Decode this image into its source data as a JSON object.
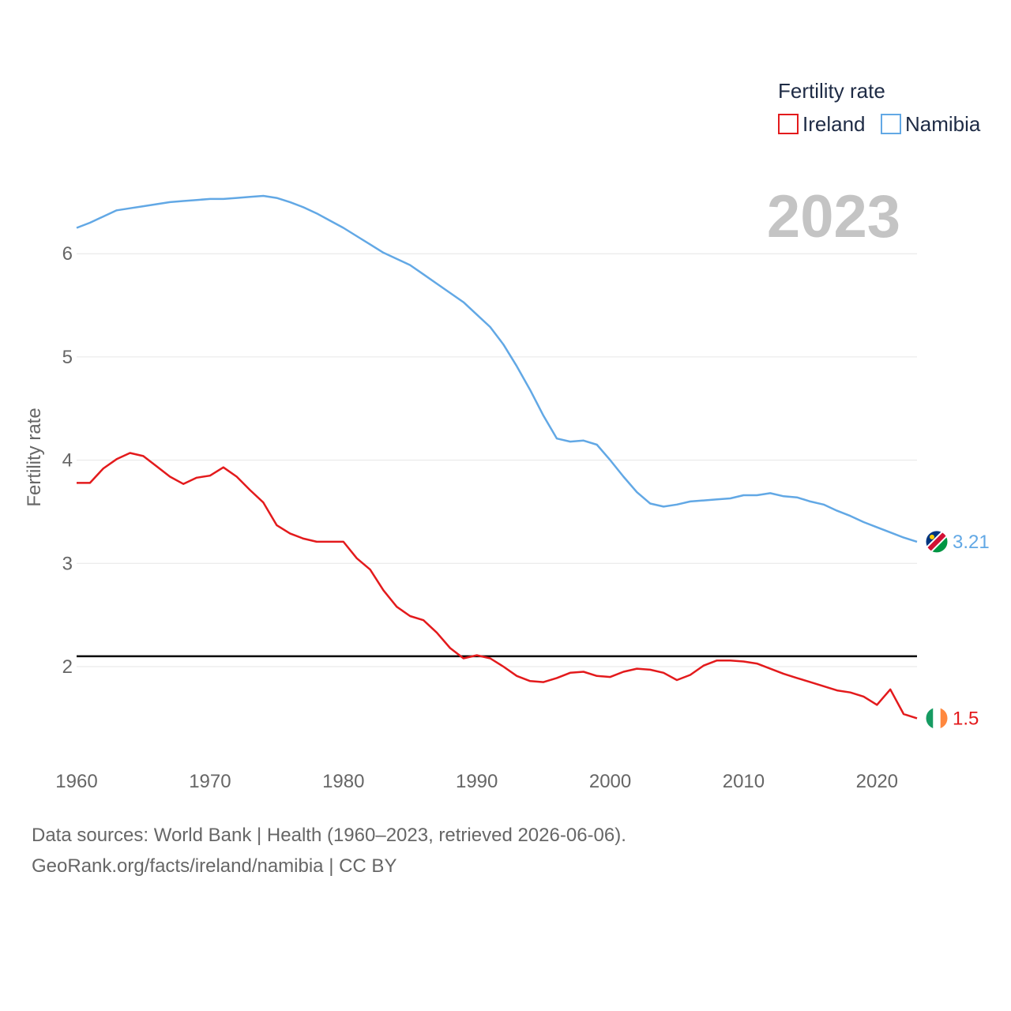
{
  "chart_data": {
    "type": "line",
    "title": "",
    "xlabel": "",
    "ylabel": "Fertility rate",
    "xlim": [
      1960,
      2023
    ],
    "ylim": [
      1.0,
      7.0
    ],
    "x_ticks": [
      "1960",
      "1970",
      "1980",
      "1990",
      "2000",
      "2010",
      "2020"
    ],
    "y_ticks": [
      "2",
      "3",
      "4",
      "5",
      "6"
    ],
    "grid": true,
    "legend_title": "Fertility rate",
    "legend_position": "top-right",
    "current_year": "2023",
    "reference_line": {
      "value": 2.1
    },
    "x": [
      1960,
      1961,
      1962,
      1963,
      1964,
      1965,
      1966,
      1967,
      1968,
      1969,
      1970,
      1971,
      1972,
      1973,
      1974,
      1975,
      1976,
      1977,
      1978,
      1979,
      1980,
      1981,
      1982,
      1983,
      1984,
      1985,
      1986,
      1987,
      1988,
      1989,
      1990,
      1991,
      1992,
      1993,
      1994,
      1995,
      1996,
      1997,
      1998,
      1999,
      2000,
      2001,
      2002,
      2003,
      2004,
      2005,
      2006,
      2007,
      2008,
      2009,
      2010,
      2011,
      2012,
      2013,
      2014,
      2015,
      2016,
      2017,
      2018,
      2019,
      2020,
      2021,
      2022,
      2023
    ],
    "series": [
      {
        "name": "Ireland",
        "color": "#e31a1c",
        "end_label": "1.5",
        "flag": "ireland-flag",
        "values": [
          3.78,
          3.78,
          3.92,
          4.01,
          4.07,
          4.04,
          3.94,
          3.84,
          3.77,
          3.83,
          3.85,
          3.93,
          3.84,
          3.71,
          3.59,
          3.37,
          3.29,
          3.24,
          3.21,
          3.21,
          3.21,
          3.05,
          2.94,
          2.74,
          2.58,
          2.49,
          2.45,
          2.33,
          2.18,
          2.08,
          2.11,
          2.08,
          2.0,
          1.91,
          1.86,
          1.85,
          1.89,
          1.94,
          1.95,
          1.91,
          1.9,
          1.95,
          1.98,
          1.97,
          1.94,
          1.87,
          1.92,
          2.01,
          2.06,
          2.06,
          2.05,
          2.03,
          1.98,
          1.93,
          1.89,
          1.85,
          1.81,
          1.77,
          1.75,
          1.71,
          1.63,
          1.78,
          1.54,
          1.5
        ]
      },
      {
        "name": "Namibia",
        "color": "#62a8e5",
        "end_label": "3.21",
        "flag": "namibia-flag",
        "values": [
          6.25,
          6.3,
          6.36,
          6.42,
          6.44,
          6.46,
          6.48,
          6.5,
          6.51,
          6.52,
          6.53,
          6.53,
          6.54,
          6.55,
          6.56,
          6.54,
          6.5,
          6.45,
          6.39,
          6.32,
          6.25,
          6.17,
          6.09,
          6.01,
          5.95,
          5.89,
          5.8,
          5.71,
          5.62,
          5.53,
          5.41,
          5.29,
          5.12,
          4.91,
          4.68,
          4.43,
          4.21,
          4.18,
          4.19,
          4.15,
          4.0,
          3.84,
          3.69,
          3.58,
          3.55,
          3.57,
          3.6,
          3.61,
          3.62,
          3.63,
          3.66,
          3.66,
          3.68,
          3.65,
          3.64,
          3.6,
          3.57,
          3.51,
          3.46,
          3.4,
          3.35,
          3.3,
          3.25,
          3.21
        ]
      }
    ]
  },
  "footer": {
    "line1": "Data sources: World Bank | Health (1960–2023, retrieved 2026-06-06).",
    "line2": "GeoRank.org/facts/ireland/namibia | CC BY"
  }
}
